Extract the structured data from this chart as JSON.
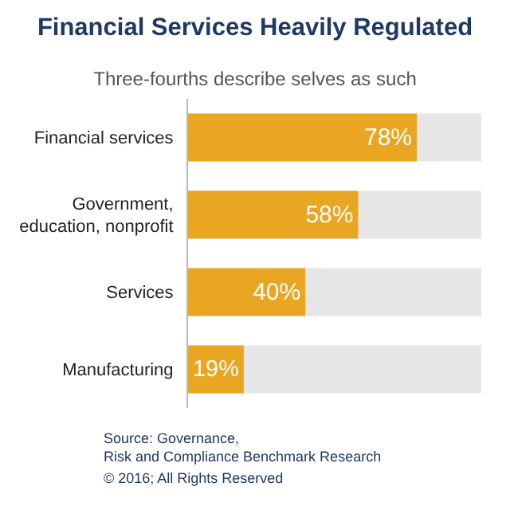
{
  "chart_data": {
    "type": "bar",
    "orientation": "horizontal",
    "title": "Financial Services Heavily Regulated",
    "subtitle": "Three-fourths describe selves as such",
    "categories": [
      "Financial services",
      "Government, education, nonprofit",
      "Services",
      "Manufacturing"
    ],
    "values": [
      78,
      58,
      40,
      19
    ],
    "value_labels": [
      "78%",
      "58%",
      "40%",
      "19%"
    ],
    "color": "#e8a623",
    "xlim": [
      0,
      100
    ],
    "tick_labels": "y",
    "annotations": [
      "Source: Governance,\nRisk and Compliance Benchmark Research",
      "© 2016; All Rights Reserved"
    ]
  }
}
